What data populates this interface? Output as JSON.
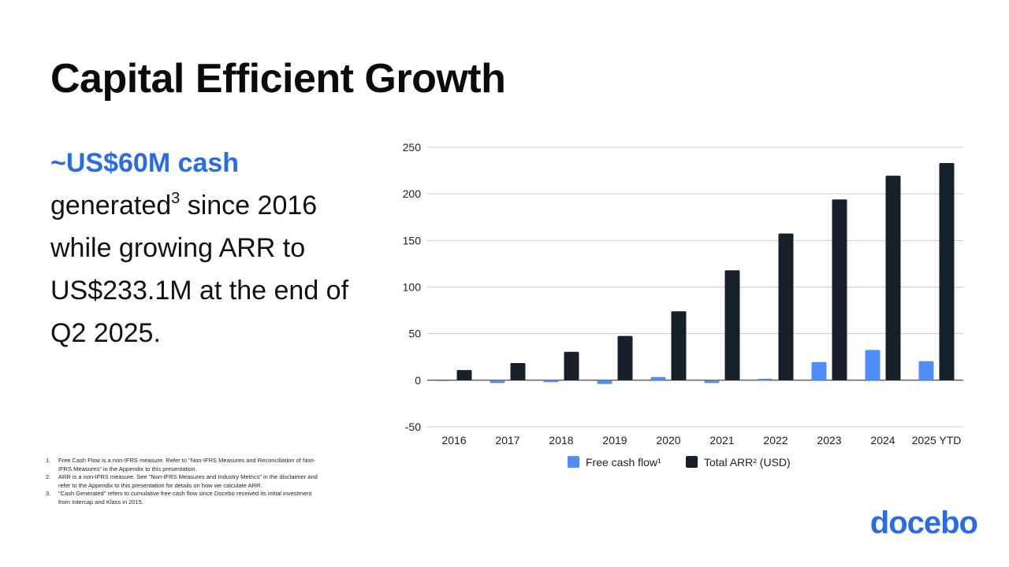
{
  "slide": {
    "title": "Capital Efficient Growth",
    "headline_accent": "~US$60M cash",
    "headline_part1": "generated",
    "headline_sup": "3",
    "headline_part2": " since 2016 while growing ARR to US$233.1M at the end of Q2 2025."
  },
  "footnotes": [
    {
      "num": "1.",
      "text": "Free Cash Flow is a non-IFRS measure.  Refer to \"Non-IFRS Measures and Reconciliation of Non-IFRS Measures\" in the Appendix to this presentation."
    },
    {
      "num": "2.",
      "text": "ARR is a non-IFRS measure. See \"Non-IFRS Measures and Industry Metrics\" in the disclaimer and refer to the Appendix to this presentation for details on how we calculate ARR."
    },
    {
      "num": "3.",
      "text": "\"Cash Generated\" refers to cumulative free cash flow since Docebo received its initial investment from Intercap and Klass in 2015."
    }
  ],
  "logo": {
    "text": "docebo"
  },
  "colors": {
    "accent": "#2a6ce8",
    "fcf": "#4f8ef7",
    "arr": "#17202a",
    "grid": "#cccccc"
  },
  "chart_data": {
    "type": "bar",
    "title": "",
    "xlabel": "",
    "ylabel": "",
    "ylim": [
      -50,
      250
    ],
    "yticks": [
      250,
      200,
      150,
      100,
      50,
      0,
      -50
    ],
    "grid": true,
    "legend_position": "bottom",
    "categories": [
      "2016",
      "2017",
      "2018",
      "2019",
      "2020",
      "2021",
      "2022",
      "2023",
      "2024",
      "2025 YTD"
    ],
    "series": [
      {
        "name": "Free cash flow¹",
        "color": "#4f8ef7",
        "values": [
          -0.5,
          -3,
          -2,
          -4,
          3.5,
          -3,
          1.5,
          19.5,
          32.5,
          20.5
        ]
      },
      {
        "name": "Total ARR² (USD)",
        "color": "#17202a",
        "values": [
          11,
          18.5,
          30.5,
          47.5,
          74,
          118,
          157.5,
          194,
          219.5,
          233.1
        ]
      }
    ]
  }
}
